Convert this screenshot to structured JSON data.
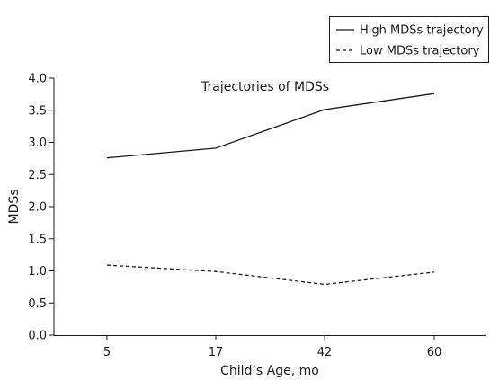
{
  "chart_data": {
    "type": "line",
    "categories": [
      "5",
      "17",
      "42",
      "60"
    ],
    "series": [
      {
        "name": "High MDSs trajectory",
        "values": [
          2.76,
          2.91,
          3.51,
          3.76
        ],
        "line_style": "solid",
        "color": "#1a1a1a"
      },
      {
        "name": "Low MDSs trajectory",
        "values": [
          1.09,
          0.99,
          0.79,
          0.98
        ],
        "line_style": "dashed",
        "color": "#1a1a1a"
      }
    ],
    "title": "",
    "annotation": "Trajectories of MDSs",
    "xlabel": "Child’s Age, mo",
    "ylabel": "MDSs",
    "ylim": [
      0.0,
      4.0
    ],
    "yticks": [
      "0.0",
      "0.5",
      "1.0",
      "1.5",
      "2.0",
      "2.5",
      "3.0",
      "3.5",
      "4.0"
    ],
    "grid": false,
    "legend_position": "top-right"
  }
}
